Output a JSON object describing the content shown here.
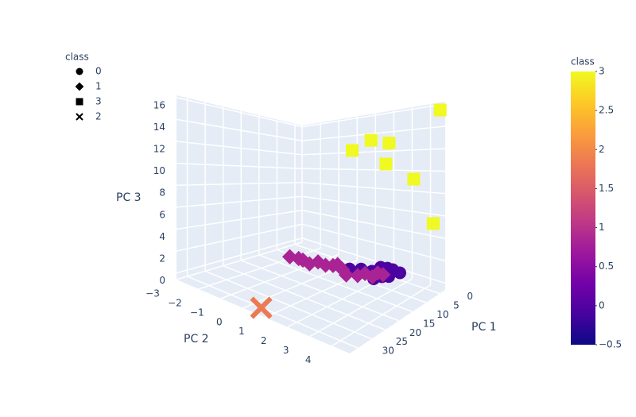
{
  "chart_data": {
    "type": "scatter3d",
    "xlabel": "PC 1",
    "ylabel": "PC 2",
    "zlabel": "PC 3",
    "xlim": [
      -2,
      33
    ],
    "ylim": [
      -3,
      4.8
    ],
    "zlim": [
      -0.6,
      16.2
    ],
    "xticks": [
      0,
      5,
      10,
      15,
      20,
      25,
      30
    ],
    "yticks": [
      {
        "value": -3,
        "label": "−3"
      },
      {
        "value": -2,
        "label": "−2"
      },
      {
        "value": -1,
        "label": "−1"
      },
      0,
      1,
      2,
      3,
      4
    ],
    "zticks": [
      0,
      2,
      4,
      6,
      8,
      10,
      12,
      14,
      16
    ],
    "grid": true,
    "legend_title": "class",
    "legend": "top-left",
    "series": [
      {
        "name": "0",
        "symbol": "circle",
        "color": "#4c02a1",
        "x": [
          3.5,
          5,
          6,
          7,
          8,
          4.5,
          6.5,
          9,
          5.5,
          7.5,
          8.5,
          6,
          4,
          10
        ],
        "y": [
          3.2,
          2.9,
          2.6,
          2.8,
          2.4,
          2.7,
          2.2,
          2.0,
          2.5,
          1.8,
          2.6,
          3.0,
          2.9,
          1.6
        ],
        "z": [
          0.9,
          1.0,
          1.1,
          0.8,
          1.0,
          1.2,
          0.9,
          1.1,
          1.3,
          1.0,
          0.7,
          0.8,
          1.1,
          1.2
        ]
      },
      {
        "name": "1",
        "symbol": "diamond",
        "color": "#a92395",
        "x": [
          10.2,
          10.5,
          11,
          10.8,
          10,
          9.5,
          9,
          8.5,
          9.8,
          8,
          7.5,
          7,
          6.5,
          6,
          8.8
        ],
        "y": [
          -1.4,
          -0.9,
          -0.6,
          -0.3,
          0,
          0.3,
          0.6,
          1.0,
          1.4,
          1.7,
          2.0,
          2.3,
          2.5,
          2.7,
          0.8
        ],
        "z": [
          0.5,
          0.7,
          0.8,
          0.6,
          0.9,
          0.7,
          0.8,
          0.6,
          0.5,
          0.4,
          0.7,
          0.5,
          0.9,
          0.8,
          1.0
        ]
      },
      {
        "name": "3",
        "symbol": "square",
        "color": "#f0f921",
        "x": [
          -1.5,
          -0.25,
          1.5,
          -0.25,
          0,
          0.2,
          0
        ],
        "y": [
          4.6,
          4.41,
          3.63,
          0.04,
          1.1,
          2.1,
          1.9
        ],
        "z": [
          15.5,
          5.4,
          9.4,
          12.2,
          13.2,
          12.8,
          10.7
        ]
      },
      {
        "name": "2",
        "symbol": "x",
        "color": "#ed7953",
        "x": [
          31.5
        ],
        "y": [
          0.6
        ],
        "z": [
          -0.3
        ]
      }
    ],
    "colorbar": {
      "title": "class",
      "lim": [
        -0.5,
        3
      ],
      "ticks": [
        {
          "value": -0.5,
          "label": "−0.5"
        },
        0,
        0.5,
        1,
        1.5,
        2,
        2.5,
        3
      ],
      "colorscale": [
        "#0d0887",
        "#46039f",
        "#7201a8",
        "#9c179e",
        "#bd3786",
        "#d8576b",
        "#ed7953",
        "#fb9f3a",
        "#fdca26",
        "#f0f921"
      ]
    }
  }
}
